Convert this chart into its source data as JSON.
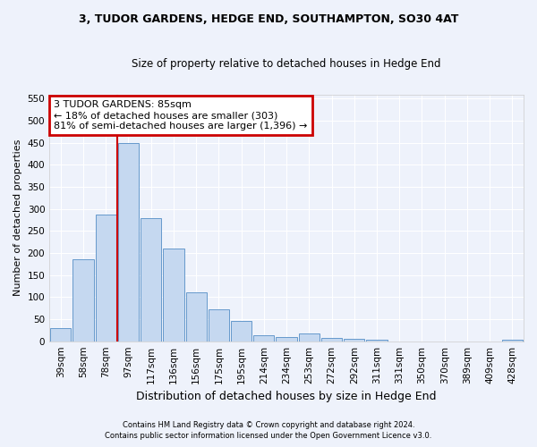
{
  "title": "3, TUDOR GARDENS, HEDGE END, SOUTHAMPTON, SO30 4AT",
  "subtitle": "Size of property relative to detached houses in Hedge End",
  "xlabel": "Distribution of detached houses by size in Hedge End",
  "ylabel": "Number of detached properties",
  "bar_fill_color": "#c5d8f0",
  "bar_edge_color": "#6699cc",
  "categories": [
    "39sqm",
    "58sqm",
    "78sqm",
    "97sqm",
    "117sqm",
    "136sqm",
    "156sqm",
    "175sqm",
    "195sqm",
    "214sqm",
    "234sqm",
    "253sqm",
    "272sqm",
    "292sqm",
    "311sqm",
    "331sqm",
    "350sqm",
    "370sqm",
    "389sqm",
    "409sqm",
    "428sqm"
  ],
  "values": [
    30,
    185,
    288,
    450,
    280,
    210,
    110,
    72,
    45,
    14,
    10,
    18,
    8,
    5,
    4,
    0,
    0,
    0,
    0,
    0,
    4
  ],
  "ylim": [
    0,
    560
  ],
  "yticks": [
    0,
    50,
    100,
    150,
    200,
    250,
    300,
    350,
    400,
    450,
    500,
    550
  ],
  "annotation_text": "3 TUDOR GARDENS: 85sqm\n← 18% of detached houses are smaller (303)\n81% of semi-detached houses are larger (1,396) →",
  "annotation_box_color": "#ffffff",
  "annotation_box_edge": "#cc0000",
  "line_color": "#cc0000",
  "line_x_index": 2.5,
  "footer1": "Contains HM Land Registry data © Crown copyright and database right 2024.",
  "footer2": "Contains public sector information licensed under the Open Government Licence v3.0.",
  "background_color": "#eef2fb",
  "grid_color": "#ffffff",
  "title_fontsize": 9,
  "subtitle_fontsize": 8.5,
  "ylabel_fontsize": 8,
  "xlabel_fontsize": 9,
  "tick_fontsize": 7.5,
  "annotation_fontsize": 8,
  "footer_fontsize": 6
}
